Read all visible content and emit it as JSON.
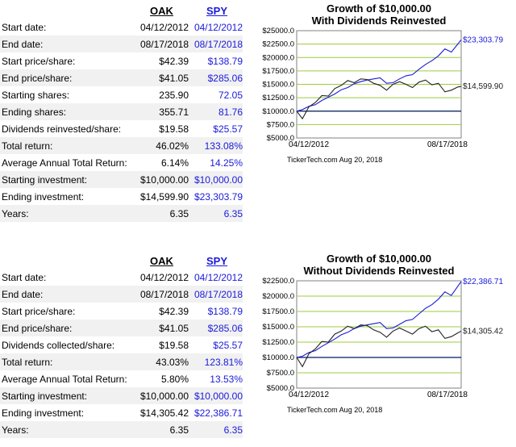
{
  "panels": [
    {
      "headers": {
        "oak": "OAK",
        "spy": "SPY"
      },
      "rows": [
        {
          "label": "Start date:",
          "oak": "04/12/2012",
          "spy": "04/12/2012"
        },
        {
          "label": "End date:",
          "oak": "08/17/2018",
          "spy": "08/17/2018"
        },
        {
          "label": "Start price/share:",
          "oak": "$42.39",
          "spy": "$138.79"
        },
        {
          "label": "End price/share:",
          "oak": "$41.05",
          "spy": "$285.06"
        },
        {
          "label": "Starting shares:",
          "oak": "235.90",
          "spy": "72.05"
        },
        {
          "label": "Ending shares:",
          "oak": "355.71",
          "spy": "81.76"
        },
        {
          "label": "Dividends reinvested/share:",
          "oak": "$19.58",
          "spy": "$25.57"
        },
        {
          "label": "Total return:",
          "oak": "46.02%",
          "spy": "133.08%"
        },
        {
          "label": "Average Annual Total Return:",
          "oak": "6.14%",
          "spy": "14.25%"
        },
        {
          "label": "Starting investment:",
          "oak": "$10,000.00",
          "spy": "$10,000.00"
        },
        {
          "label": "Ending investment:",
          "oak": "$14,599.90",
          "spy": "$23,303.79"
        },
        {
          "label": "Years:",
          "oak": "6.35",
          "spy": "6.35"
        }
      ]
    },
    {
      "headers": {
        "oak": "OAK",
        "spy": "SPY"
      },
      "rows": [
        {
          "label": "Start date:",
          "oak": "04/12/2012",
          "spy": "04/12/2012"
        },
        {
          "label": "End date:",
          "oak": "08/17/2018",
          "spy": "08/17/2018"
        },
        {
          "label": "Start price/share:",
          "oak": "$42.39",
          "spy": "$138.79"
        },
        {
          "label": "End price/share:",
          "oak": "$41.05",
          "spy": "$285.06"
        },
        {
          "label": "Dividends collected/share:",
          "oak": "$19.58",
          "spy": "$25.57"
        },
        {
          "label": "Total return:",
          "oak": "43.03%",
          "spy": "123.81%"
        },
        {
          "label": "Average Annual Total Return:",
          "oak": "5.80%",
          "spy": "13.53%"
        },
        {
          "label": "Starting investment:",
          "oak": "$10,000.00",
          "spy": "$10,000.00"
        },
        {
          "label": "Ending investment:",
          "oak": "$14,305.42",
          "spy": "$22,386.71"
        },
        {
          "label": "Years:",
          "oak": "6.35",
          "spy": "6.35"
        }
      ]
    }
  ],
  "colors": {
    "spy": "#1a1adb",
    "oak": "#222222",
    "grid": "#9ccc3c",
    "baseline": "#001a66",
    "plot_bg": "#ffffff"
  },
  "chart_data": [
    {
      "type": "line",
      "title": "Growth of $10,000.00",
      "subtitle": "With Dividends Reinvested",
      "ylim": [
        5000,
        25000
      ],
      "yticks": [
        5000,
        7500,
        10000,
        12500,
        15000,
        17500,
        20000,
        22500,
        25000
      ],
      "ytick_labels": [
        "$5000.0",
        "$7500.0",
        "$10000.0",
        "$12500.0",
        "$15000.0",
        "$17500.0",
        "$20000.0",
        "$22500.0",
        "$25000.0"
      ],
      "x_start_label": "04/12/2012",
      "x_end_label": "08/17/2018",
      "baseline": 10000,
      "x": [
        2012.28,
        2012.5,
        2012.75,
        2013.0,
        2013.25,
        2013.5,
        2013.75,
        2014.0,
        2014.25,
        2014.5,
        2014.75,
        2015.0,
        2015.25,
        2015.5,
        2015.75,
        2016.0,
        2016.25,
        2016.5,
        2016.75,
        2017.0,
        2017.25,
        2017.5,
        2017.75,
        2018.0,
        2018.25,
        2018.5,
        2018.63
      ],
      "series": [
        {
          "name": "SPY",
          "end_label": "$23,303.79",
          "values": [
            10000,
            10300,
            10900,
            11200,
            12000,
            12600,
            13200,
            14000,
            14400,
            15100,
            15500,
            15800,
            16000,
            16200,
            15200,
            15300,
            16000,
            16600,
            16800,
            17800,
            18700,
            19400,
            20300,
            21600,
            21000,
            22500,
            23304
          ]
        },
        {
          "name": "OAK",
          "end_label": "$14,599.90",
          "values": [
            10000,
            8600,
            10800,
            11600,
            12900,
            12800,
            14200,
            14800,
            15700,
            15300,
            16000,
            15900,
            15200,
            14800,
            13900,
            15000,
            15500,
            15000,
            14400,
            15400,
            15800,
            14900,
            15200,
            13600,
            13900,
            14500,
            14600
          ]
        }
      ],
      "footer": "TickerTech.com  Aug 20, 2018"
    },
    {
      "type": "line",
      "title": "Growth of $10,000.00",
      "subtitle": "Without Dividends Reinvested",
      "ylim": [
        5000,
        22500
      ],
      "yticks": [
        5000,
        7500,
        10000,
        12500,
        15000,
        17500,
        20000,
        22500
      ],
      "ytick_labels": [
        "$5000.0",
        "$7500.0",
        "$10000.0",
        "$12500.0",
        "$15000.0",
        "$17500.0",
        "$20000.0",
        "$22500.0"
      ],
      "x_start_label": "04/12/2012",
      "x_end_label": "08/17/2018",
      "baseline": 10000,
      "x": [
        2012.28,
        2012.5,
        2012.75,
        2013.0,
        2013.25,
        2013.5,
        2013.75,
        2014.0,
        2014.25,
        2014.5,
        2014.75,
        2015.0,
        2015.25,
        2015.5,
        2015.75,
        2016.0,
        2016.25,
        2016.5,
        2016.75,
        2017.0,
        2017.25,
        2017.5,
        2017.75,
        2018.0,
        2018.25,
        2018.5,
        2018.63
      ],
      "series": [
        {
          "name": "SPY",
          "end_label": "$22,386.71",
          "values": [
            10000,
            10200,
            10800,
            11100,
            11800,
            12400,
            13000,
            13700,
            14100,
            14700,
            15100,
            15300,
            15500,
            15700,
            14700,
            14800,
            15400,
            16000,
            16200,
            17100,
            18000,
            18600,
            19500,
            20700,
            20100,
            21600,
            22387
          ]
        },
        {
          "name": "OAK",
          "end_label": "$14,305.42",
          "values": [
            10000,
            8500,
            10600,
            11400,
            12600,
            12500,
            13800,
            14300,
            15100,
            14700,
            15300,
            15200,
            14500,
            14100,
            13300,
            14300,
            14800,
            14300,
            13800,
            14700,
            15100,
            14200,
            14500,
            13100,
            13400,
            14000,
            14305
          ]
        }
      ],
      "footer": "TickerTech.com  Aug 20, 2018"
    }
  ]
}
